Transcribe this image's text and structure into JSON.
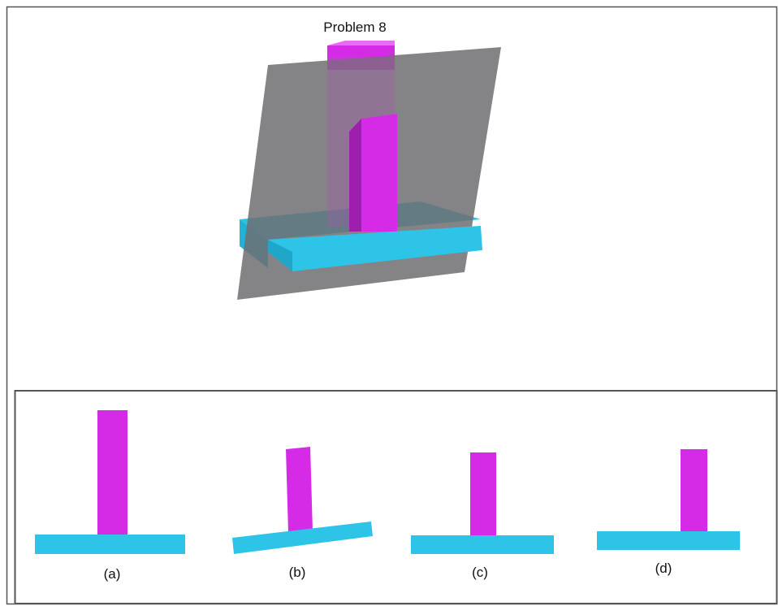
{
  "title": "Problem 8",
  "options": [
    {
      "label": "(a)"
    },
    {
      "label": "(b)"
    },
    {
      "label": "(c)"
    },
    {
      "label": "(d)"
    }
  ],
  "colors": {
    "magenta": "#d62be6",
    "magenta_dark": "#b01fc2",
    "cyan": "#2ec4e8",
    "cyan_dark": "#1fa6c9",
    "plane": "#7c7c80",
    "frame": "#555555"
  }
}
